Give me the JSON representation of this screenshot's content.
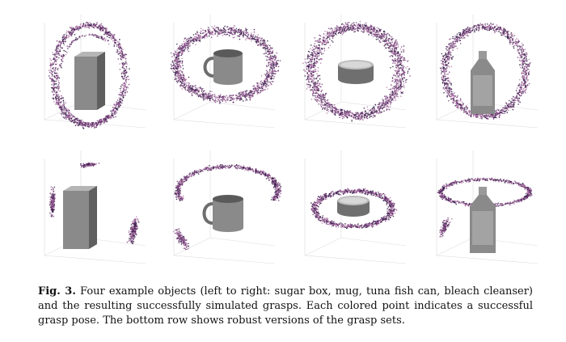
{
  "caption": {
    "label": "Fig. 3.",
    "text": "Four example objects (left to right: sugar box, mug, tuna fish can, bleach cleanser) and the resulting successfully simulated grasps. Each colored point indicates a successful grasp pose. The bottom row shows robust versions of the grasp sets."
  },
  "objects": [
    "sugar box",
    "mug",
    "tuna fish can",
    "bleach cleanser"
  ],
  "rows": [
    "all successful grasps",
    "robust grasps"
  ],
  "colors": {
    "point_light": "#b07aa8",
    "point_mid": "#7a3d7e",
    "point_dark": "#2a1540",
    "object_gray": "#8a8a8a",
    "grid": "#dcdcdc"
  }
}
